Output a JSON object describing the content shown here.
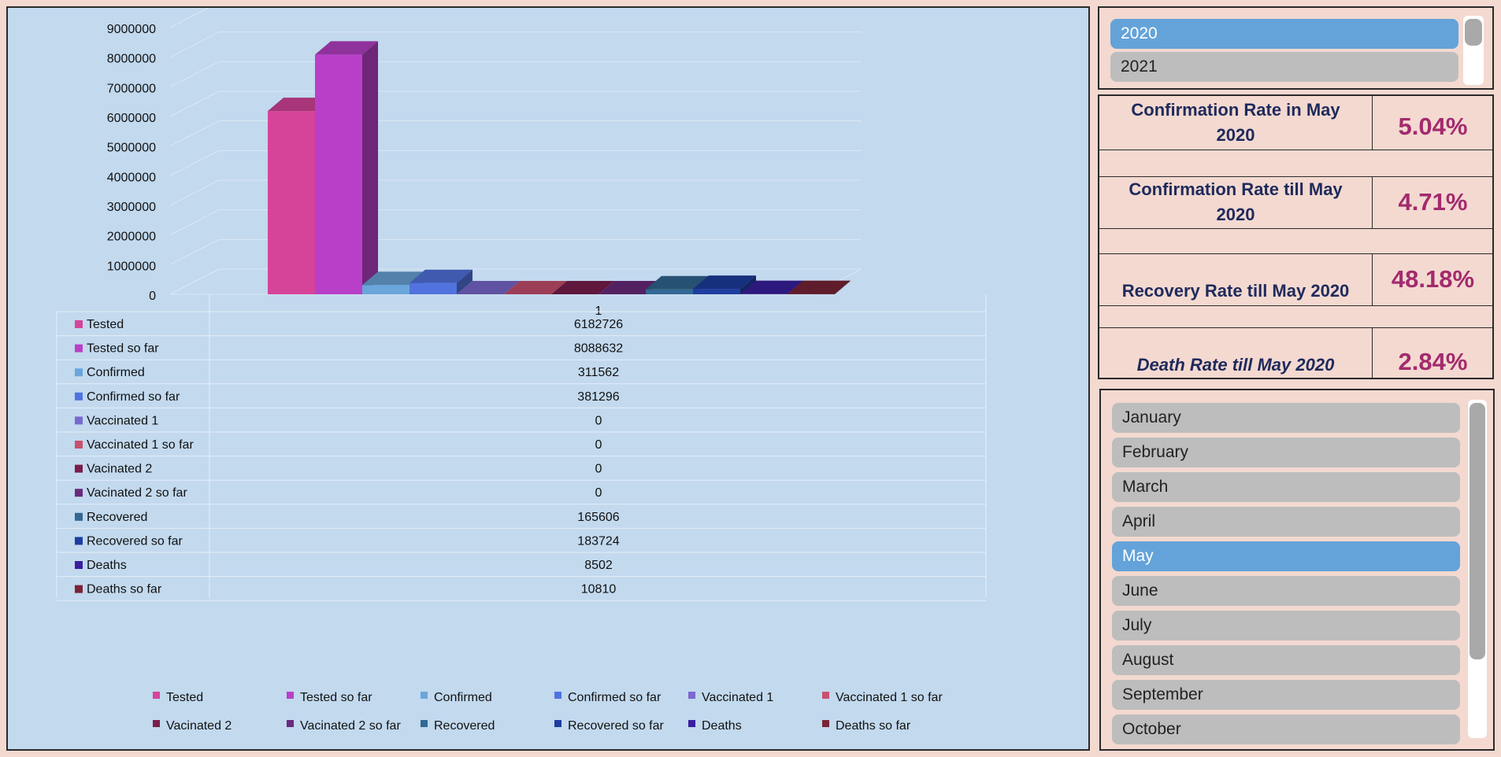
{
  "year_slicer": {
    "items": [
      "2020",
      "2021"
    ],
    "selected": "2020"
  },
  "kpis": [
    {
      "label": "Confirmation Rate in May 2020",
      "value": "5.04%"
    },
    {
      "label": "Confirmation Rate till May 2020",
      "value": "4.71%"
    },
    {
      "label": "Recovery Rate till May 2020",
      "value": "48.18%"
    },
    {
      "label": "Death Rate till May 2020",
      "value": "2.84%"
    }
  ],
  "month_slicer": {
    "items": [
      "January",
      "February",
      "March",
      "April",
      "May",
      "June",
      "July",
      "August",
      "September",
      "October"
    ],
    "selected": "May"
  },
  "chart_data": {
    "type": "bar",
    "categories": [
      "1"
    ],
    "ylim": [
      0,
      9000000
    ],
    "y_ticks": [
      "0",
      "1000000",
      "2000000",
      "3000000",
      "4000000",
      "5000000",
      "6000000",
      "7000000",
      "8000000",
      "9000000"
    ],
    "grid": true,
    "legend_position": "bottom",
    "data_table": true,
    "series": [
      {
        "name": "Tested",
        "values": [
          6182726
        ],
        "color": "#d6449a"
      },
      {
        "name": "Tested so far",
        "values": [
          8088632
        ],
        "color": "#b840c8"
      },
      {
        "name": "Confirmed",
        "values": [
          311562
        ],
        "color": "#6aa6dc"
      },
      {
        "name": "Confirmed so far",
        "values": [
          381296
        ],
        "color": "#5173e0"
      },
      {
        "name": "Vaccinated 1",
        "values": [
          0
        ],
        "color": "#7b69d0"
      },
      {
        "name": "Vaccinated 1 so far",
        "values": [
          0
        ],
        "color": "#c8516e"
      },
      {
        "name": "Vacinated 2",
        "values": [
          0
        ],
        "color": "#7a1e4c"
      },
      {
        "name": "Vacinated 2 so far",
        "values": [
          0
        ],
        "color": "#6a2a7e"
      },
      {
        "name": "Recovered",
        "values": [
          165606
        ],
        "color": "#326894"
      },
      {
        "name": "Recovered so far",
        "values": [
          183724
        ],
        "color": "#1e3ea0"
      },
      {
        "name": "Deaths",
        "values": [
          8502
        ],
        "color": "#3a1fa0"
      },
      {
        "name": "Deaths so far",
        "values": [
          10810
        ],
        "color": "#7a2436"
      }
    ]
  }
}
